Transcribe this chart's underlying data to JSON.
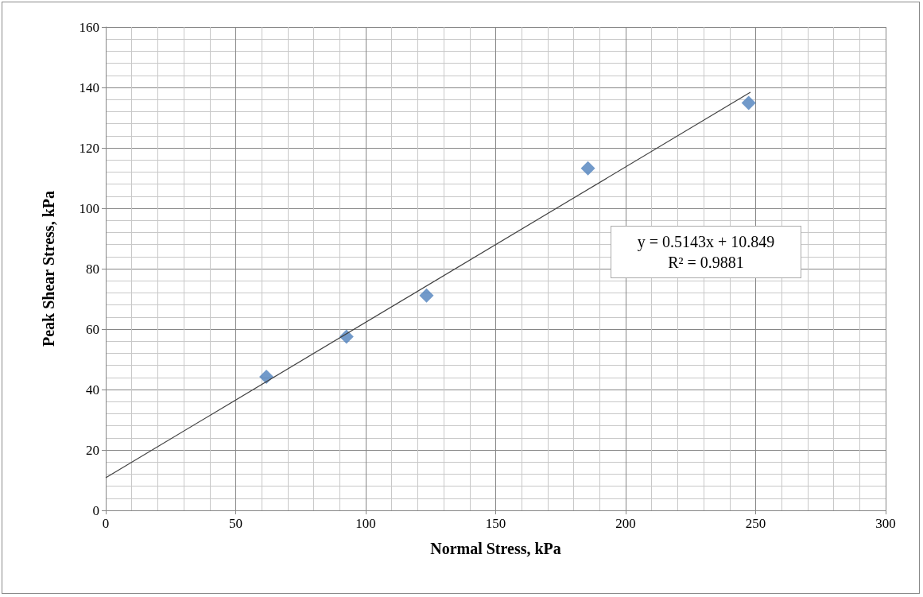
{
  "chart_data": {
    "type": "scatter",
    "xlabel": "Normal Stress, kPa",
    "ylabel": "Peak Shear Stress, kPa",
    "xlim": [
      0,
      300
    ],
    "xticks": [
      0,
      50,
      100,
      150,
      200,
      250,
      300
    ],
    "ylim": [
      0,
      160
    ],
    "yticks": [
      0,
      20,
      40,
      60,
      80,
      100,
      120,
      140,
      160
    ],
    "grid": true,
    "marker": "diamond",
    "series": [
      {
        "color": "#4f81bd",
        "x": [
          61.8,
          92.6,
          123.4,
          185.5,
          247.3
        ],
        "values": [
          44.2,
          57.5,
          71.1,
          113.2,
          134.9
        ]
      },
      {
        "type": "line",
        "color": "#404040",
        "x": [
          0,
          248
        ],
        "values": [
          10.8,
          138.4
        ],
        "marker": "none",
        "line_style": "solid"
      }
    ],
    "annotations": [
      "y = 0.5143x + 10.849",
      "R² = 0.9881"
    ]
  }
}
